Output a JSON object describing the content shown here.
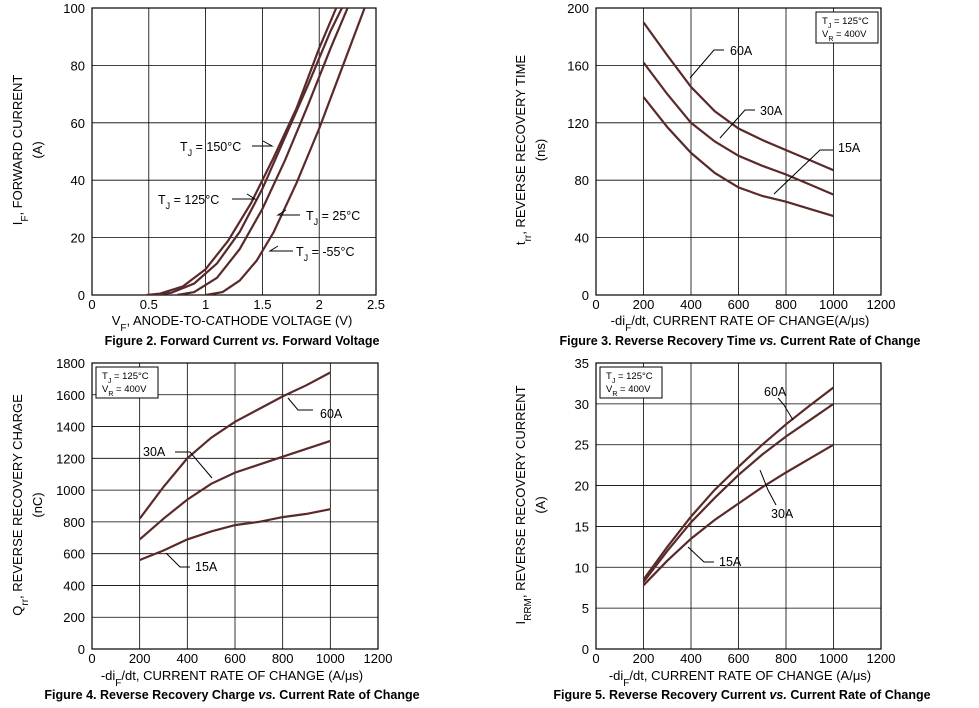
{
  "chart_data": [
    {
      "type": "line",
      "title": "Figure 2. Forward Current vs. Forward Voltage",
      "caption_parts": {
        "pre": "Figure 2. Forward Current ",
        "vs": "vs.",
        "post": " Forward Voltage"
      },
      "ylabel_parts": {
        "sym": "I",
        "sub": "F",
        "rest": ", FORWARD CURRENT",
        "unit": "(A)"
      },
      "xlabel_parts": {
        "sym": "V",
        "sub": "F",
        "rest": ", ANODE-TO-CATHODE VOLTAGE (V)"
      },
      "xlim": [
        0,
        2.5
      ],
      "ylim": [
        0,
        100
      ],
      "xticks": [
        "0",
        "0.5",
        "1",
        "1.5",
        "2",
        "2.5"
      ],
      "yticks": [
        "0",
        "20",
        "40",
        "60",
        "80",
        "100"
      ],
      "series": [
        {
          "name": "TJ = 150°C",
          "label_parts": {
            "sym": "T",
            "sub": "J",
            "rest": " = 150°C"
          },
          "x": [
            0.48,
            0.6,
            0.8,
            1.0,
            1.2,
            1.4,
            1.6,
            1.8,
            2.0,
            2.15
          ],
          "y": [
            0,
            0.5,
            3,
            9,
            19,
            32,
            48,
            65,
            86,
            100
          ]
        },
        {
          "name": "TJ = 125°C",
          "label_parts": {
            "sym": "T",
            "sub": "J",
            "rest": " = 125°C"
          },
          "x": [
            0.55,
            0.7,
            0.9,
            1.1,
            1.3,
            1.5,
            1.7,
            1.9,
            2.1,
            2.2
          ],
          "y": [
            0,
            0.8,
            4,
            11,
            22,
            37,
            55,
            73,
            92,
            100
          ]
        },
        {
          "name": "TJ = 25°C",
          "label_parts": {
            "sym": "T",
            "sub": "J",
            "rest": " = 25°C"
          },
          "x": [
            0.75,
            0.9,
            1.1,
            1.3,
            1.5,
            1.7,
            1.9,
            2.1,
            2.25
          ],
          "y": [
            0,
            1,
            6,
            16,
            30,
            47,
            66,
            86,
            100
          ]
        },
        {
          "name": "TJ = -55°C",
          "label_parts": {
            "sym": "T",
            "sub": "J",
            "rest": " = -55°C"
          },
          "x": [
            1.0,
            1.15,
            1.3,
            1.45,
            1.6,
            1.8,
            2.0,
            2.2,
            2.4
          ],
          "y": [
            0,
            1,
            5,
            12,
            22,
            39,
            58,
            79,
            100
          ]
        }
      ]
    },
    {
      "type": "line",
      "title": "Figure 3. Reverse Recovery Time vs. Current Rate of Change",
      "caption_parts": {
        "pre": "Figure 3. Reverse Recovery Time ",
        "vs": "vs.",
        "post": " Current Rate of Change"
      },
      "ylabel_parts": {
        "sym": "t",
        "sub": "rr",
        "rest": ", REVERSE RECOVERY TIME",
        "unit": "(ns)"
      },
      "xlabel_parts": {
        "pre": "-di",
        "sub": "F",
        "rest": "/dt, CURRENT RATE OF CHANGE(A/μs)"
      },
      "conditions": {
        "line1": {
          "sym": "T",
          "sub": "J",
          "rest": " = 125°C"
        },
        "line2": {
          "sym": "V",
          "sub": "R",
          "rest": " = 400V"
        }
      },
      "xlim": [
        0,
        1200
      ],
      "ylim": [
        0,
        200
      ],
      "xticks": [
        "0",
        "200",
        "400",
        "600",
        "800",
        "1000",
        "1200"
      ],
      "yticks": [
        "0",
        "40",
        "80",
        "120",
        "160",
        "200"
      ],
      "series": [
        {
          "name": "60A",
          "x": [
            200,
            300,
            400,
            500,
            600,
            700,
            800,
            900,
            1000
          ],
          "y": [
            190,
            167,
            145,
            128,
            116,
            108,
            101,
            94,
            87
          ]
        },
        {
          "name": "30A",
          "x": [
            200,
            300,
            400,
            500,
            600,
            700,
            800,
            900,
            1000
          ],
          "y": [
            162,
            140,
            120,
            107,
            97,
            90,
            84,
            77,
            70
          ]
        },
        {
          "name": "15A",
          "x": [
            200,
            300,
            400,
            500,
            600,
            700,
            800,
            900,
            1000
          ],
          "y": [
            138,
            117,
            99,
            85,
            75,
            69,
            65,
            60,
            55
          ]
        }
      ]
    },
    {
      "type": "line",
      "title": "Figure 4. Reverse Recovery Charge vs. Current Rate of Change",
      "caption_parts": {
        "pre": "Figure 4. Reverse Recovery Charge ",
        "vs": "vs.",
        "post": " Current Rate of Change"
      },
      "ylabel_parts": {
        "sym": "Q",
        "sub": "rr",
        "rest": ", REVERSE RECOVERY CHARGE",
        "unit": "(nC)"
      },
      "xlabel_parts": {
        "pre": "-di",
        "sub": "F",
        "rest": "/dt, CURRENT RATE OF CHANGE (A/μs)"
      },
      "conditions": {
        "line1": {
          "sym": "T",
          "sub": "J",
          "rest": " = 125°C"
        },
        "line2": {
          "sym": "V",
          "sub": "R",
          "rest": " = 400V"
        }
      },
      "xlim": [
        0,
        1200
      ],
      "ylim": [
        0,
        1800
      ],
      "xticks": [
        "0",
        "200",
        "400",
        "600",
        "800",
        "1000",
        "1200"
      ],
      "yticks": [
        "0",
        "200",
        "400",
        "600",
        "800",
        "1000",
        "1200",
        "1400",
        "1600",
        "1800"
      ],
      "series": [
        {
          "name": "60A",
          "x": [
            200,
            300,
            400,
            500,
            600,
            700,
            800,
            900,
            1000
          ],
          "y": [
            820,
            1020,
            1200,
            1330,
            1430,
            1510,
            1590,
            1660,
            1740
          ]
        },
        {
          "name": "30A",
          "x": [
            200,
            300,
            400,
            500,
            600,
            700,
            800,
            900,
            1000
          ],
          "y": [
            690,
            820,
            940,
            1040,
            1110,
            1160,
            1210,
            1260,
            1310
          ]
        },
        {
          "name": "15A",
          "x": [
            200,
            300,
            400,
            500,
            600,
            700,
            800,
            900,
            1000
          ],
          "y": [
            560,
            620,
            690,
            740,
            780,
            800,
            830,
            850,
            880
          ]
        }
      ]
    },
    {
      "type": "line",
      "title": "Figure 5. Reverse Recovery Current vs. Current Rate of Change",
      "caption_parts": {
        "pre": "Figure 5. Reverse Recovery Current ",
        "vs": "vs.",
        "post": " Current Rate of Change"
      },
      "ylabel_parts": {
        "sym": "I",
        "sub": "RRM",
        "rest": ", REVERSE RECOVERY CURRENT",
        "unit": "(A)"
      },
      "xlabel_parts": {
        "pre": "-di",
        "sub": "F",
        "rest": "/dt, CURRENT RATE OF CHANGE (A/μs)"
      },
      "conditions": {
        "line1": {
          "sym": "T",
          "sub": "J",
          "rest": " = 125°C"
        },
        "line2": {
          "sym": "V",
          "sub": "R",
          "rest": " = 400V"
        }
      },
      "xlim": [
        0,
        1200
      ],
      "ylim": [
        0,
        35
      ],
      "xticks": [
        "0",
        "200",
        "400",
        "600",
        "800",
        "1000",
        "1200"
      ],
      "yticks": [
        "0",
        "5",
        "10",
        "15",
        "20",
        "25",
        "30",
        "35"
      ],
      "series": [
        {
          "name": "60A",
          "x": [
            200,
            300,
            400,
            500,
            600,
            700,
            800,
            900,
            1000
          ],
          "y": [
            8.5,
            12.5,
            16.2,
            19.5,
            22.3,
            25,
            27.5,
            29.8,
            32
          ]
        },
        {
          "name": "30A",
          "x": [
            200,
            300,
            400,
            500,
            600,
            700,
            800,
            900,
            1000
          ],
          "y": [
            8.2,
            12,
            15.5,
            18.5,
            21.3,
            23.8,
            26,
            28,
            30
          ]
        },
        {
          "name": "15A",
          "x": [
            200,
            300,
            400,
            500,
            600,
            700,
            800,
            900,
            1000
          ],
          "y": [
            7.8,
            10.8,
            13.5,
            15.8,
            17.8,
            19.8,
            21.6,
            23.3,
            25
          ]
        }
      ]
    }
  ]
}
